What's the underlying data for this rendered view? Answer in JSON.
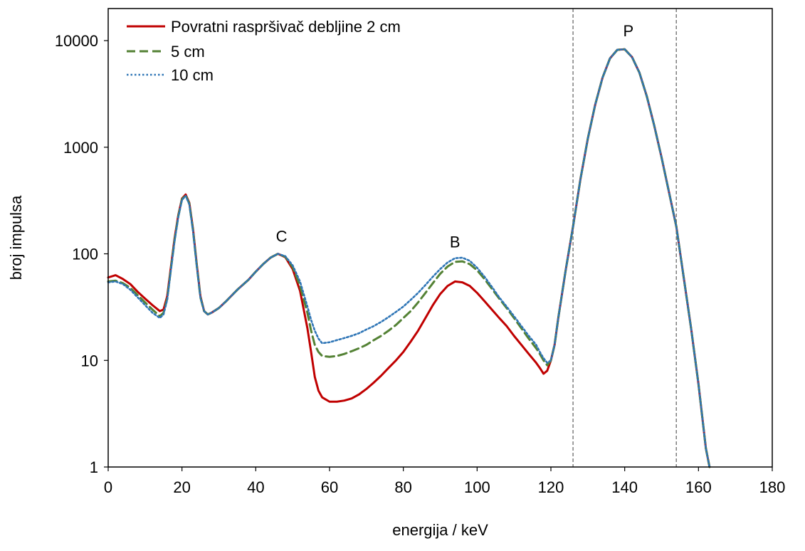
{
  "chart_data": {
    "type": "line",
    "xlabel": "energija / keV",
    "ylabel": "broj impulsa",
    "x_ticks": [
      "0",
      "20",
      "40",
      "60",
      "80",
      "100",
      "120",
      "140",
      "160",
      "180"
    ],
    "y_ticks": [
      "1",
      "10",
      "100",
      "1000",
      "10000"
    ],
    "xlim": [
      0,
      180
    ],
    "ylim": [
      1,
      20000
    ],
    "y_scale": "log",
    "grid": false,
    "legend_position": "top-left",
    "vertical_lines": [
      126,
      154
    ],
    "annotations": [
      {
        "text": "C",
        "x": 47,
        "y": 130
      },
      {
        "text": "B",
        "x": 94,
        "y": 115
      },
      {
        "text": "P",
        "x": 141,
        "y": 11000
      }
    ],
    "series": [
      {
        "name": "Povratni raspršivač debljine 2 cm",
        "color": "#c00000",
        "dash": "solid",
        "x": [
          0,
          2,
          4,
          6,
          8,
          10,
          12,
          14,
          15,
          16,
          17,
          18,
          19,
          20,
          21,
          22,
          23,
          24,
          25,
          26,
          27,
          28,
          30,
          32,
          35,
          38,
          40,
          42,
          44,
          46,
          48,
          50,
          52,
          54,
          55,
          56,
          57,
          58,
          60,
          62,
          64,
          66,
          68,
          70,
          72,
          74,
          76,
          78,
          80,
          82,
          84,
          86,
          88,
          90,
          92,
          94,
          96,
          98,
          100,
          102,
          104,
          106,
          108,
          110,
          112,
          114,
          116,
          117,
          118,
          119,
          120,
          121,
          122,
          124,
          126,
          128,
          130,
          132,
          134,
          136,
          138,
          140,
          142,
          144,
          146,
          148,
          150,
          152,
          154,
          156,
          158,
          160,
          162,
          163
        ],
        "y": [
          60,
          63,
          58,
          52,
          44,
          38,
          33,
          29,
          30,
          40,
          75,
          140,
          230,
          330,
          360,
          300,
          170,
          80,
          40,
          29,
          27,
          28,
          31,
          36,
          46,
          57,
          68,
          80,
          92,
          100,
          93,
          72,
          45,
          20,
          12,
          7,
          5.2,
          4.5,
          4.1,
          4.1,
          4.2,
          4.4,
          4.8,
          5.4,
          6.2,
          7.2,
          8.5,
          10,
          12,
          15,
          19,
          25,
          33,
          42,
          50,
          55,
          54,
          50,
          43,
          36,
          30,
          25,
          21,
          17,
          14,
          11.5,
          9.5,
          8.5,
          7.5,
          8,
          10,
          14,
          25,
          70,
          180,
          500,
          1200,
          2500,
          4500,
          6800,
          8200,
          8300,
          7000,
          5000,
          3000,
          1600,
          800,
          380,
          180,
          60,
          20,
          6,
          1.5,
          1
        ]
      },
      {
        "name": "5 cm",
        "color": "#548235",
        "dash": "dashed",
        "x": [
          0,
          2,
          4,
          6,
          8,
          10,
          12,
          14,
          15,
          16,
          17,
          18,
          19,
          20,
          21,
          22,
          23,
          24,
          25,
          26,
          27,
          28,
          30,
          32,
          35,
          38,
          40,
          42,
          44,
          46,
          48,
          50,
          52,
          54,
          55,
          56,
          57,
          58,
          60,
          62,
          64,
          66,
          68,
          70,
          72,
          74,
          76,
          78,
          80,
          82,
          84,
          86,
          88,
          90,
          92,
          94,
          96,
          98,
          100,
          102,
          104,
          106,
          108,
          110,
          112,
          114,
          116,
          117,
          118,
          119,
          120,
          121,
          122,
          124,
          126,
          128,
          130,
          132,
          134,
          136,
          138,
          140,
          142,
          144,
          146,
          148,
          150,
          152,
          154,
          156,
          158,
          160,
          162,
          163
        ],
        "y": [
          55,
          56,
          53,
          48,
          41,
          35,
          30,
          26,
          28,
          38,
          72,
          135,
          225,
          325,
          355,
          295,
          165,
          78,
          39,
          29,
          27,
          28,
          31,
          36,
          46,
          57,
          68,
          80,
          92,
          100,
          94,
          75,
          50,
          28,
          19,
          14,
          12,
          11,
          10.8,
          11,
          11.5,
          12.2,
          13,
          14,
          15.5,
          17,
          19,
          21.5,
          25,
          29,
          35,
          43,
          53,
          65,
          76,
          84,
          85,
          80,
          70,
          58,
          47,
          38,
          31,
          25,
          20,
          16,
          13,
          11.5,
          10,
          9,
          10,
          14,
          25,
          70,
          180,
          500,
          1200,
          2500,
          4500,
          6800,
          8200,
          8300,
          7000,
          5000,
          3000,
          1600,
          800,
          380,
          180,
          60,
          20,
          6,
          1.5,
          1
        ]
      },
      {
        "name": "10 cm",
        "color": "#2e75b6",
        "dash": "dotted",
        "x": [
          0,
          2,
          4,
          6,
          8,
          10,
          12,
          14,
          15,
          16,
          17,
          18,
          19,
          20,
          21,
          22,
          23,
          24,
          25,
          26,
          27,
          28,
          30,
          32,
          35,
          38,
          40,
          42,
          44,
          46,
          48,
          50,
          52,
          54,
          55,
          56,
          57,
          58,
          60,
          62,
          64,
          66,
          68,
          70,
          72,
          74,
          76,
          78,
          80,
          82,
          84,
          86,
          88,
          90,
          92,
          94,
          96,
          98,
          100,
          102,
          104,
          106,
          108,
          110,
          112,
          114,
          116,
          117,
          118,
          119,
          120,
          121,
          122,
          124,
          126,
          128,
          130,
          132,
          134,
          136,
          138,
          140,
          142,
          144,
          146,
          148,
          150,
          152,
          154,
          156,
          158,
          160,
          162,
          163
        ],
        "y": [
          54,
          55,
          52,
          46,
          39,
          33,
          28,
          25,
          27,
          37,
          70,
          132,
          220,
          320,
          350,
          290,
          162,
          77,
          39,
          29,
          27,
          28,
          31,
          36,
          46,
          57,
          68,
          80,
          92,
          100,
          95,
          78,
          55,
          32,
          24,
          19,
          16,
          14.5,
          14.8,
          15.5,
          16.2,
          17,
          18,
          19.5,
          21,
          23,
          25.5,
          28.5,
          32,
          37,
          43,
          51,
          61,
          72,
          83,
          91,
          92,
          86,
          74,
          61,
          49,
          39,
          32,
          26,
          21,
          17,
          14,
          12,
          10.5,
          9.5,
          10,
          14,
          25,
          70,
          180,
          500,
          1200,
          2500,
          4500,
          6800,
          8200,
          8300,
          7000,
          5000,
          3000,
          1600,
          800,
          380,
          180,
          60,
          20,
          6,
          1.5,
          1
        ]
      }
    ]
  }
}
